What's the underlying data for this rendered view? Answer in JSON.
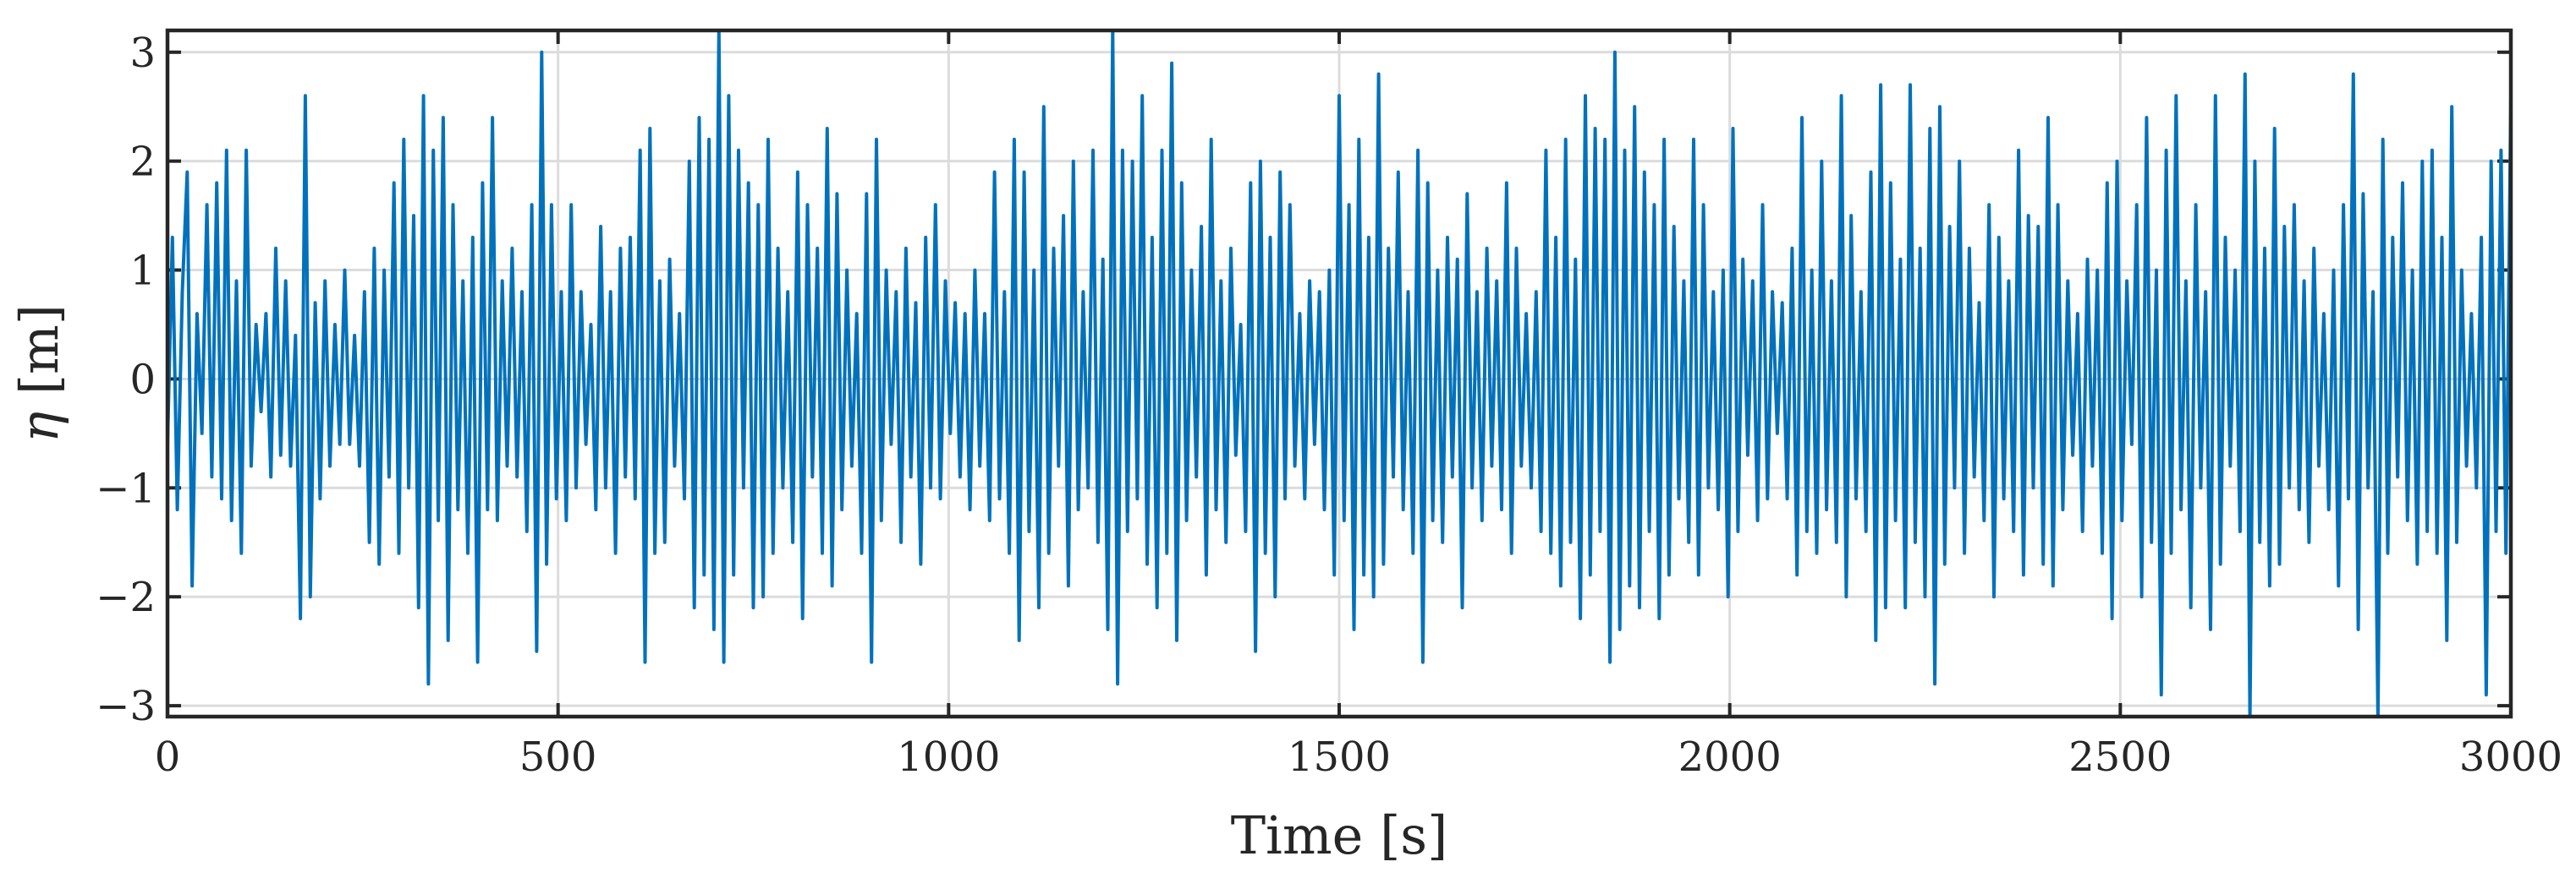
{
  "chart_data": {
    "type": "line",
    "title": "",
    "xlabel": "Time [s]",
    "ylabel_symbol": "η",
    "ylabel_unit": " [m]",
    "xlim": [
      0,
      3000
    ],
    "ylim": [
      -3.1,
      3.2
    ],
    "xticks": [
      0,
      500,
      1000,
      1500,
      2000,
      2500,
      3000
    ],
    "xtick_labels": [
      "0",
      "500",
      "1000",
      "1500",
      "2000",
      "2500",
      "3000"
    ],
    "yticks": [
      3,
      2,
      1,
      0,
      -1,
      -2,
      -3
    ],
    "ytick_labels": [
      "3",
      "2",
      "1",
      "0",
      "−1",
      "−2",
      "−3"
    ],
    "grid": true,
    "legend": "none",
    "series": [
      {
        "color": "#0072BD",
        "sample_interval_s": 5,
        "x_start": 0,
        "x_end": 3000,
        "values": [
          -0.6,
          1.3,
          -1.2,
          0.8,
          1.9,
          -1.9,
          0.6,
          -0.5,
          1.6,
          -0.9,
          1.8,
          -1.1,
          2.1,
          -1.3,
          0.9,
          -1.6,
          2.1,
          -0.8,
          0.5,
          -0.3,
          0.6,
          -0.9,
          1.2,
          -0.7,
          0.9,
          -0.8,
          0.4,
          -2.2,
          2.6,
          -2.0,
          0.7,
          -1.1,
          0.9,
          -0.8,
          0.5,
          -0.6,
          1.0,
          -0.6,
          0.4,
          -0.8,
          0.8,
          -1.5,
          1.2,
          -1.7,
          1.0,
          -0.9,
          1.8,
          -1.6,
          2.2,
          -1.0,
          1.5,
          -2.1,
          2.6,
          -2.8,
          2.1,
          -1.3,
          2.4,
          -2.4,
          1.6,
          -1.2,
          0.9,
          -1.6,
          1.3,
          -2.6,
          1.8,
          -1.2,
          2.4,
          -1.3,
          0.9,
          -0.8,
          1.2,
          -0.9,
          0.8,
          -1.4,
          1.6,
          -2.5,
          3.0,
          -1.7,
          1.6,
          -1.1,
          0.8,
          -1.3,
          1.6,
          -1.0,
          0.8,
          -0.6,
          0.5,
          -1.2,
          1.4,
          -1.0,
          0.8,
          -1.6,
          1.2,
          -0.9,
          1.3,
          -1.1,
          2.1,
          -2.6,
          2.3,
          -1.6,
          0.9,
          -1.5,
          1.1,
          -0.8,
          0.6,
          -1.1,
          2.0,
          -2.1,
          2.4,
          -1.8,
          2.2,
          -2.3,
          3.2,
          -2.6,
          2.6,
          -1.8,
          2.1,
          -1.0,
          1.8,
          -2.1,
          1.6,
          -2.0,
          2.2,
          -1.6,
          1.2,
          -1.0,
          0.8,
          -1.5,
          1.9,
          -2.2,
          1.6,
          -0.9,
          1.2,
          -1.6,
          2.3,
          -1.9,
          1.7,
          -1.2,
          1.0,
          -0.8,
          0.6,
          -1.6,
          1.7,
          -2.6,
          2.2,
          -1.3,
          1.0,
          -0.6,
          0.8,
          -1.5,
          1.2,
          -0.9,
          0.7,
          -1.7,
          1.3,
          -1.0,
          1.6,
          -1.1,
          0.9,
          -0.5,
          0.7,
          -0.9,
          0.6,
          -1.2,
          1.0,
          -0.8,
          0.6,
          -1.3,
          1.9,
          -1.1,
          0.8,
          -1.6,
          2.2,
          -2.4,
          1.9,
          -1.4,
          1.0,
          -2.1,
          2.5,
          -1.6,
          1.2,
          -0.8,
          1.5,
          -1.9,
          2.0,
          -1.2,
          0.8,
          -1.0,
          2.1,
          -1.5,
          1.1,
          -2.3,
          3.2,
          -2.8,
          2.1,
          -1.4,
          2.0,
          -1.1,
          2.6,
          -1.7,
          1.3,
          -2.1,
          2.1,
          -1.6,
          2.9,
          -2.4,
          1.8,
          -1.3,
          1.0,
          -0.9,
          1.4,
          -1.8,
          2.2,
          -1.2,
          0.9,
          -1.5,
          1.2,
          -0.7,
          0.5,
          -1.4,
          1.8,
          -2.5,
          2.0,
          -1.6,
          1.3,
          -2.0,
          1.9,
          -1.1,
          1.6,
          -0.8,
          0.6,
          -1.1,
          0.9,
          -0.6,
          0.8,
          -1.2,
          1.0,
          -1.8,
          2.6,
          -1.3,
          1.6,
          -2.3,
          2.2,
          -1.8,
          1.3,
          -2.0,
          2.8,
          -1.7,
          1.2,
          -0.9,
          1.9,
          -1.2,
          0.8,
          -1.6,
          2.1,
          -2.6,
          1.8,
          -1.3,
          1.0,
          -1.5,
          1.3,
          -0.9,
          1.1,
          -2.1,
          1.7,
          -1.0,
          0.8,
          -1.3,
          1.2,
          -0.8,
          0.9,
          -1.2,
          1.8,
          -1.6,
          1.2,
          -0.8,
          0.6,
          -1.0,
          0.8,
          -1.4,
          2.1,
          -1.6,
          1.3,
          -1.9,
          2.2,
          -1.5,
          1.1,
          -2.2,
          2.6,
          -1.8,
          2.3,
          -1.4,
          2.2,
          -2.6,
          3.0,
          -2.3,
          2.1,
          -1.9,
          2.5,
          -2.1,
          1.9,
          -1.4,
          1.6,
          -2.2,
          2.2,
          -1.8,
          1.4,
          -1.1,
          0.9,
          -1.5,
          2.2,
          -1.8,
          1.6,
          -1.0,
          0.8,
          -1.2,
          1.0,
          -2.0,
          2.3,
          -1.4,
          1.1,
          -0.7,
          0.9,
          -1.3,
          1.6,
          -1.1,
          0.8,
          -0.5,
          0.7,
          -1.1,
          1.2,
          -1.8,
          2.4,
          -1.4,
          1.0,
          -1.6,
          2.0,
          -1.2,
          0.9,
          -1.5,
          2.6,
          -2.0,
          1.5,
          -1.1,
          0.8,
          -1.4,
          1.9,
          -2.4,
          2.7,
          -2.1,
          1.8,
          -1.3,
          1.1,
          -2.1,
          2.7,
          -1.5,
          1.2,
          -2.0,
          2.3,
          -2.8,
          2.5,
          -1.7,
          1.4,
          -1.0,
          2.0,
          -1.6,
          1.2,
          -0.9,
          0.7,
          -1.3,
          1.6,
          -2.0,
          1.3,
          -1.1,
          0.9,
          -1.4,
          2.1,
          -1.8,
          1.5,
          -1.0,
          1.4,
          -1.7,
          2.4,
          -1.9,
          1.6,
          -1.2,
          0.9,
          -0.7,
          0.6,
          -1.4,
          1.1,
          -0.8,
          1.0,
          -1.6,
          1.8,
          -2.2,
          2.0,
          -1.3,
          0.9,
          -0.6,
          1.6,
          -2.0,
          2.4,
          -1.5,
          1.0,
          -2.9,
          2.1,
          -1.6,
          2.6,
          -1.2,
          0.9,
          -2.1,
          1.6,
          -1.0,
          0.8,
          -2.3,
          2.6,
          -1.7,
          1.3,
          -0.8,
          1.0,
          -1.4,
          2.8,
          -3.1,
          2.0,
          -1.5,
          1.2,
          -1.9,
          2.3,
          -1.7,
          1.4,
          -1.0,
          1.6,
          -1.2,
          0.9,
          -1.5,
          1.2,
          -0.8,
          0.6,
          -1.2,
          1.0,
          -1.9,
          1.6,
          -1.1,
          2.8,
          -2.3,
          1.7,
          -1.0,
          0.8,
          -3.1,
          2.2,
          -1.6,
          1.3,
          -0.9,
          1.8,
          -1.3,
          1.0,
          -1.7,
          2.0,
          -1.4,
          2.1,
          -1.6,
          1.3,
          -2.4,
          2.5,
          -1.5,
          1.0,
          -0.8,
          0.6,
          -1.0,
          1.3,
          -2.9,
          2.0,
          -1.4,
          2.1,
          -1.6,
          2.6
        ]
      }
    ]
  }
}
